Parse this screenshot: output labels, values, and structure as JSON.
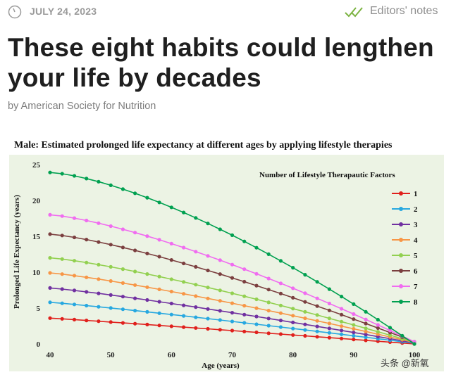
{
  "meta": {
    "date": "JULY 24, 2023",
    "category": "Editors' notes",
    "accent_color": "#7cb342"
  },
  "article": {
    "title": "These eight habits could lengthen your life by decades",
    "byline": "by American Society for Nutrition"
  },
  "watermark": "头条 @新氧",
  "chart_data": {
    "type": "line",
    "title": "Male: Estimated prolonged life expectancy at different ages by applying lifestyle therapies",
    "xlabel": "Age (years)",
    "ylabel": "Prolonged Life Expectancy (years)",
    "xlim": [
      40,
      100
    ],
    "ylim": [
      0,
      25
    ],
    "xticks": [
      40,
      50,
      60,
      70,
      80,
      90,
      100
    ],
    "yticks": [
      0,
      5,
      10,
      15,
      20,
      25
    ],
    "legend_title": "Number of Lifestyle Therapautic Factors",
    "legend_position": "top-right",
    "background_color": "#ecf3e4",
    "series": [
      {
        "name": "1",
        "color": "#e0201c",
        "start": 3.6,
        "end": 0.0,
        "curve": 1.05
      },
      {
        "name": "2",
        "color": "#27a8e0",
        "start": 5.8,
        "end": 0.1,
        "curve": 1.1
      },
      {
        "name": "3",
        "color": "#7030a0",
        "start": 7.8,
        "end": 0.15,
        "curve": 1.15
      },
      {
        "name": "4",
        "color": "#f79646",
        "start": 9.9,
        "end": 0.2,
        "curve": 1.2
      },
      {
        "name": "5",
        "color": "#92d050",
        "start": 12.0,
        "end": 0.25,
        "curve": 1.25
      },
      {
        "name": "6",
        "color": "#7b3f3f",
        "start": 15.3,
        "end": 0.3,
        "curve": 1.3
      },
      {
        "name": "7",
        "color": "#f06cf0",
        "start": 18.0,
        "end": 0.3,
        "curve": 1.35
      },
      {
        "name": "8",
        "color": "#00a050",
        "start": 23.9,
        "end": 0.0,
        "curve": 1.45
      }
    ]
  }
}
